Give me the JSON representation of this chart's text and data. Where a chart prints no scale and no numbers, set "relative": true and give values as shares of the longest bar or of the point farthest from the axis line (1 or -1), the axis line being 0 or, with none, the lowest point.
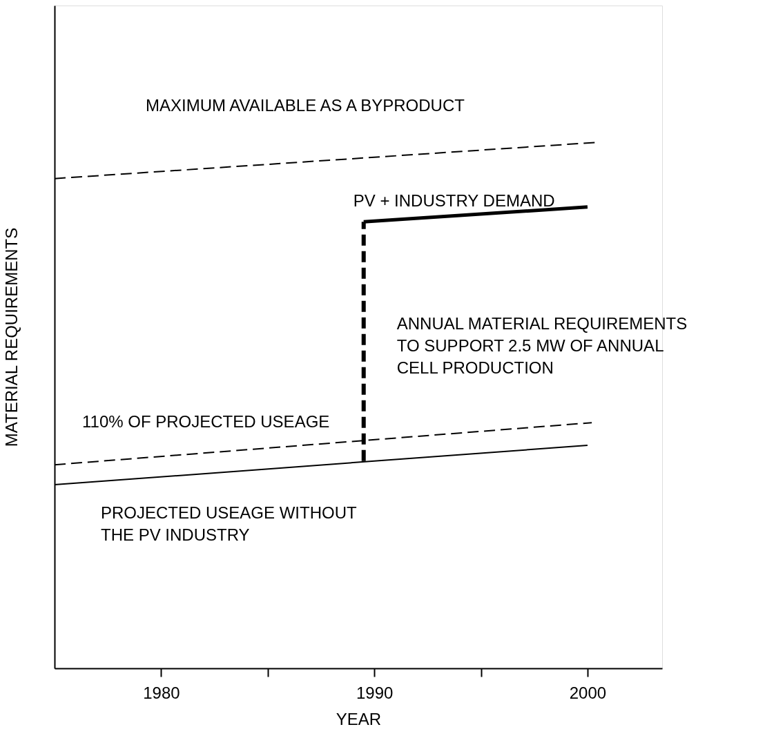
{
  "chart_data": {
    "type": "line",
    "relative": true,
    "xlabel": "YEAR",
    "ylabel": "MATERIAL REQUIREMENTS",
    "xlim": [
      1975,
      2003.5
    ],
    "xticks": [
      1980,
      {
        "value": 1985,
        "label": null
      },
      1990,
      {
        "value": 1995,
        "label": null
      },
      2000
    ],
    "grid": false,
    "marker": "none",
    "series": [
      {
        "name": "MAXIMUM AVAILABLE AS A BYPRODUCT",
        "color": "#000000",
        "line_style": "dashed",
        "x": [
          1975,
          2000.5
        ],
        "values": [
          0.931,
          1.0
        ]
      },
      {
        "color": "#000000",
        "line_style": "dashed",
        "x": [
          1989.5,
          1989.5
        ],
        "values": [
          0.394,
          0.849
        ]
      },
      {
        "name": "PV + INDUSTRY DEMAND",
        "color": "#000000",
        "line_style": "solid",
        "x": [
          1989.5,
          2000
        ],
        "values": [
          0.849,
          0.877
        ]
      },
      {
        "name": "110% OF PROJECTED USEAGE",
        "color": "#000000",
        "line_style": "dashed",
        "x": [
          1975,
          2000.2
        ],
        "values": [
          0.387,
          0.467
        ]
      },
      {
        "name": "PROJECTED USEAGE WITHOUT\nTHE PV INDUSTRY",
        "color": "#000000",
        "line_style": "solid",
        "x": [
          1975,
          2000
        ],
        "values": [
          0.349,
          0.424
        ]
      }
    ],
    "annotations": [
      {
        "text": "ANNUAL MATERIAL REQUIREMENTS\nTO SUPPORT 2.5 MW OF ANNUAL\nCELL PRODUCTION",
        "x": 1989.5,
        "y": 0.62
      }
    ]
  }
}
